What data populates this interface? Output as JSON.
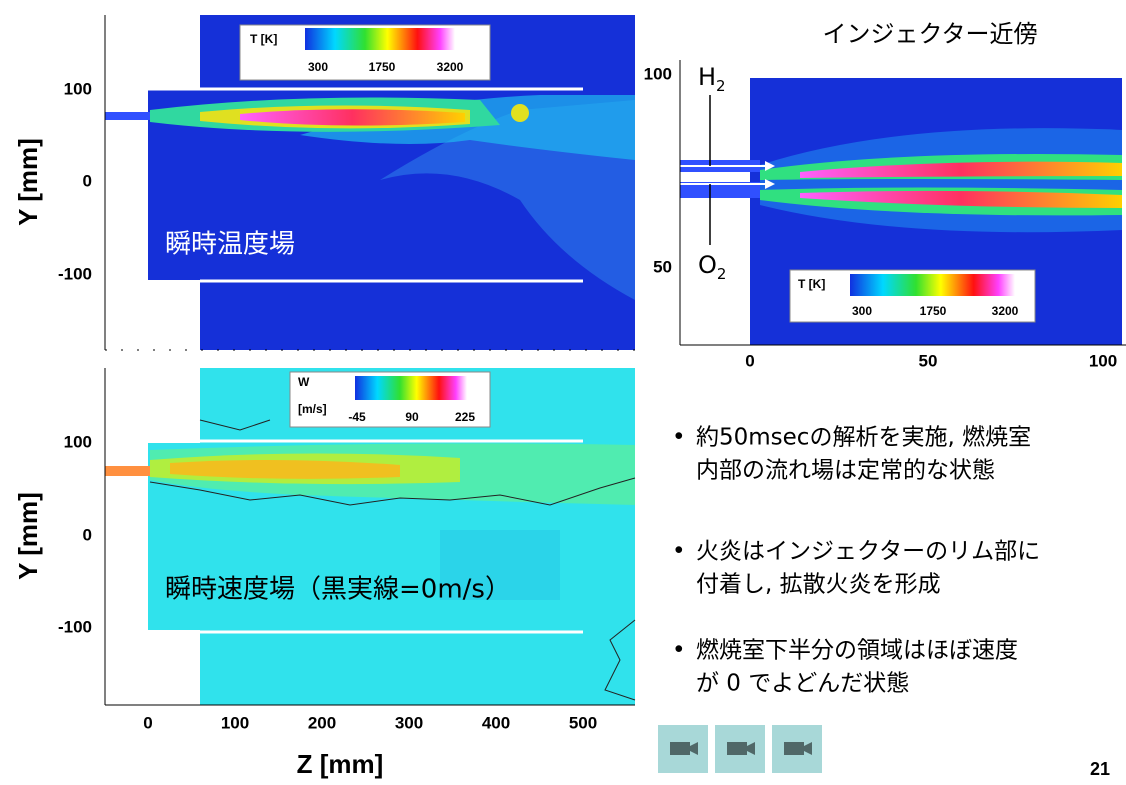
{
  "temperature_plot": {
    "label": "瞬時温度場",
    "legend": {
      "title": "T [K]",
      "ticks": [
        "300",
        "1750",
        "3200"
      ]
    },
    "yticks": [
      "100",
      "0",
      "-100"
    ]
  },
  "velocity_plot": {
    "label": "瞬時速度場（黒実線=0m/s）",
    "legend": {
      "title": "W",
      "unit": "[m/s]",
      "ticks": [
        "-45",
        "90",
        "225"
      ]
    },
    "yticks": [
      "100",
      "0",
      "-100"
    ]
  },
  "y_axis_label": "Y [mm]",
  "x_axis": {
    "label": "Z [mm]",
    "ticks": [
      "0",
      "100",
      "200",
      "300",
      "400",
      "500"
    ]
  },
  "inset": {
    "title": "インジェクター近傍",
    "h2": {
      "base": "H",
      "sub": "2"
    },
    "o2": {
      "base": "O",
      "sub": "2"
    },
    "yticks": [
      "100",
      "50"
    ],
    "xticks": [
      "0",
      "50",
      "100"
    ],
    "legend": {
      "title": "T [K]",
      "ticks": [
        "300",
        "1750",
        "3200"
      ]
    }
  },
  "bullets": [
    [
      "約50msecの解析を実施, 燃焼室",
      "内部の流れ場は定常的な状態"
    ],
    [
      "火炎はインジェクターのリム部に",
      "付着し, 拡散火炎を形成"
    ],
    [
      "燃焼室下半分の領域はほぼ速度",
      "が 0 でよどんだ状態"
    ]
  ],
  "page_number": "21"
}
